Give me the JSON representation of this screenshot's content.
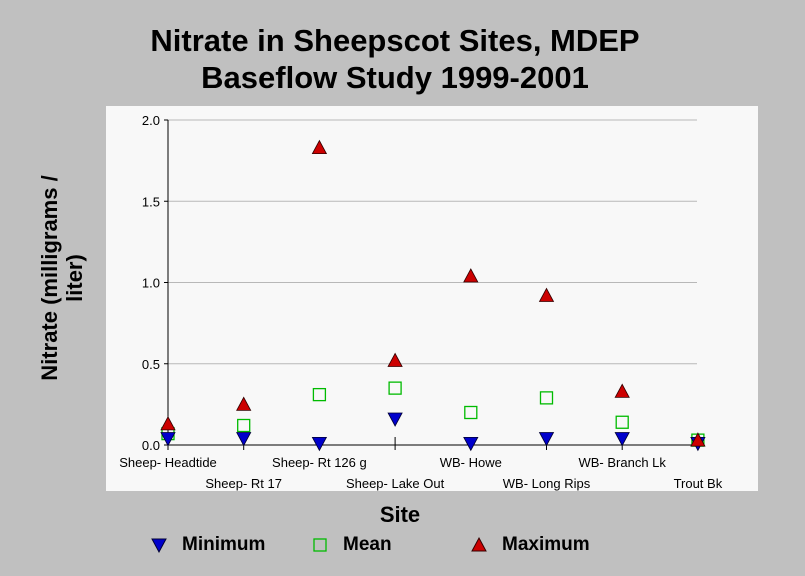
{
  "chart_data": {
    "type": "scatter",
    "title": [
      "Nitrate in Sheepscot Sites, MDEP",
      "Baseflow Study 1999-2001"
    ],
    "xlabel": "Site",
    "ylabel": [
      "Nitrate (milligrams /",
      "liter)"
    ],
    "categories": [
      "Sheep- Headtide",
      "Sheep- Rt 17",
      "Sheep- Rt 126 g",
      "Sheep- Lake Out",
      "WB- Howe",
      "WB- Long Rips",
      "WB- Branch Lk",
      "Trout Bk"
    ],
    "ylim": [
      0.0,
      2.0
    ],
    "yticks": [
      "0.0",
      "0.5",
      "1.0",
      "1.5",
      "2.0"
    ],
    "grid": true,
    "legend_position": "bottom",
    "series": [
      {
        "name": "Minimum",
        "marker": "triangle-down",
        "color": "#0000cc",
        "values": [
          0.04,
          0.04,
          0.01,
          0.16,
          0.01,
          0.04,
          0.04,
          0.01
        ]
      },
      {
        "name": "Mean",
        "marker": "square-open",
        "color": "#00bb00",
        "values": [
          0.07,
          0.12,
          0.31,
          0.35,
          0.2,
          0.29,
          0.14,
          0.03
        ]
      },
      {
        "name": "Maximum",
        "marker": "triangle-up",
        "color": "#cc0000",
        "values": [
          0.13,
          0.25,
          1.83,
          0.52,
          1.04,
          0.92,
          0.33,
          0.03
        ]
      }
    ]
  }
}
